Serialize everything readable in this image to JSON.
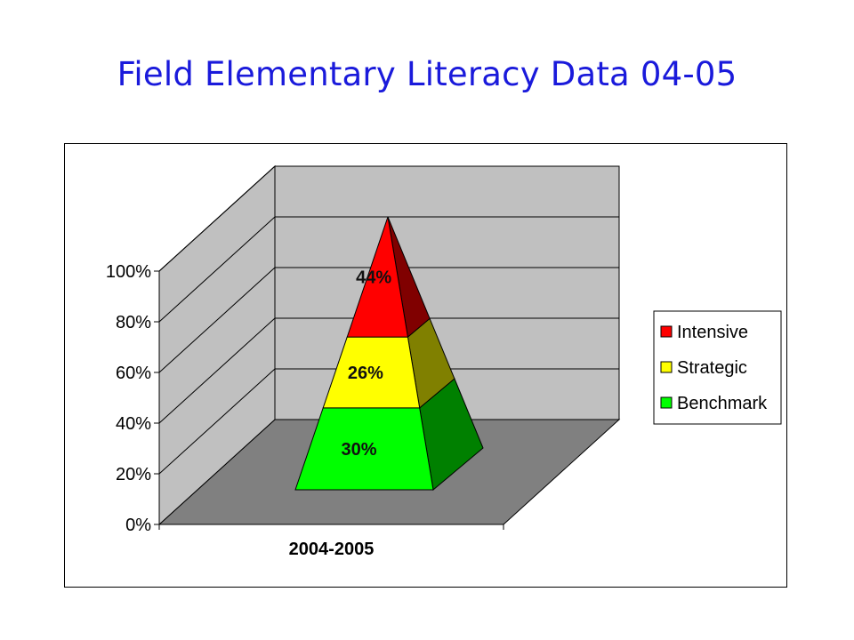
{
  "slide": {
    "title": "Field Elementary Literacy Data 04-05"
  },
  "chart_data": {
    "type": "bar",
    "subtype": "stacked-100-pyramid-3d",
    "categories": [
      "2004-2005"
    ],
    "series": [
      {
        "name": "Benchmark",
        "values": [
          30
        ],
        "label": "30%",
        "color": "#00ff00",
        "side_color": "#008000"
      },
      {
        "name": "Strategic",
        "values": [
          26
        ],
        "label": "26%",
        "color": "#ffff00",
        "side_color": "#808000"
      },
      {
        "name": "Intensive",
        "values": [
          44
        ],
        "label": "44%",
        "color": "#ff0000",
        "side_color": "#800000"
      }
    ],
    "ylim": [
      0,
      100
    ],
    "yticks": [
      0,
      20,
      40,
      60,
      80,
      100
    ],
    "ytick_labels": [
      "0%",
      "20%",
      "40%",
      "60%",
      "80%",
      "100%"
    ],
    "legend": {
      "position": "right",
      "order": [
        "Intensive",
        "Strategic",
        "Benchmark"
      ]
    },
    "grid": true,
    "colors": {
      "walls": "#c0c0c0",
      "floor": "#808080"
    }
  }
}
